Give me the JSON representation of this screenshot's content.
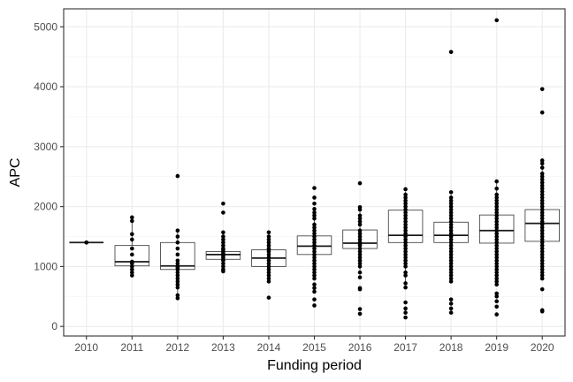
{
  "chart_data": {
    "type": "box",
    "xlabel": "Funding period",
    "ylabel": "APC",
    "categories": [
      "2010",
      "2011",
      "2012",
      "2013",
      "2014",
      "2015",
      "2016",
      "2017",
      "2018",
      "2019",
      "2020"
    ],
    "ylim": [
      -160,
      5300
    ],
    "yticks": [
      0,
      1000,
      2000,
      3000,
      4000,
      5000
    ],
    "grid": true,
    "boxes": [
      {
        "category": "2010",
        "q1": 1400,
        "median": 1400,
        "q3": 1400,
        "whisker_low": 1400,
        "whisker_high": 1400
      },
      {
        "category": "2011",
        "q1": 1010,
        "median": 1080,
        "q3": 1350,
        "whisker_low": 880,
        "whisker_high": 1780
      },
      {
        "category": "2012",
        "q1": 950,
        "median": 1010,
        "q3": 1400,
        "whisker_low": 500,
        "whisker_high": 1600
      },
      {
        "category": "2013",
        "q1": 1120,
        "median": 1200,
        "q3": 1250,
        "whisker_low": 940,
        "whisker_high": 1570
      },
      {
        "category": "2014",
        "q1": 1000,
        "median": 1140,
        "q3": 1280,
        "whisker_low": 750,
        "whisker_high": 1570
      },
      {
        "category": "2015",
        "q1": 1200,
        "median": 1340,
        "q3": 1510,
        "whisker_low": 800,
        "whisker_high": 1960
      },
      {
        "category": "2016",
        "q1": 1300,
        "median": 1390,
        "q3": 1610,
        "whisker_low": 900,
        "whisker_high": 1980
      },
      {
        "category": "2017",
        "q1": 1400,
        "median": 1520,
        "q3": 1940,
        "whisker_low": 720,
        "whisker_high": 2250
      },
      {
        "category": "2018",
        "q1": 1400,
        "median": 1520,
        "q3": 1740,
        "whisker_low": 950,
        "whisker_high": 2200
      },
      {
        "category": "2019",
        "q1": 1390,
        "median": 1600,
        "q3": 1860,
        "whisker_low": 700,
        "whisker_high": 2420
      },
      {
        "category": "2020",
        "q1": 1420,
        "median": 1720,
        "q3": 1950,
        "whisker_low": 950,
        "whisker_high": 2720
      }
    ],
    "points": [
      {
        "category": "2010",
        "values": [
          1400,
          1400
        ]
      },
      {
        "category": "2011",
        "values": [
          1820,
          1760,
          1540,
          1450,
          1300,
          1200,
          1080,
          1050,
          1000,
          950,
          900,
          850
        ]
      },
      {
        "category": "2012",
        "values": [
          2510,
          1600,
          1500,
          1400,
          1300,
          1200,
          1100,
          1050,
          1000,
          980,
          950,
          900,
          850,
          800,
          750,
          700,
          650,
          520,
          470
        ]
      },
      {
        "category": "2013",
        "values": [
          2050,
          1900,
          1570,
          1500,
          1450,
          1400,
          1350,
          1300,
          1280,
          1250,
          1220,
          1200,
          1180,
          1150,
          1120,
          1100,
          1050,
          1000,
          950,
          920
        ]
      },
      {
        "category": "2014",
        "values": [
          1570,
          1500,
          1450,
          1400,
          1350,
          1300,
          1280,
          1250,
          1200,
          1150,
          1100,
          1050,
          1000,
          950,
          900,
          850,
          800,
          750,
          480
        ]
      },
      {
        "category": "2015",
        "values": [
          2310,
          2150,
          2050,
          1960,
          1900,
          1850,
          1800,
          1700,
          1650,
          1600,
          1550,
          1500,
          1450,
          1400,
          1350,
          1300,
          1250,
          1200,
          1150,
          1100,
          1050,
          1000,
          950,
          900,
          850,
          800,
          700,
          640,
          580,
          450,
          350
        ]
      },
      {
        "category": "2016",
        "values": [
          2390,
          1990,
          1950,
          1850,
          1800,
          1750,
          1700,
          1600,
          1550,
          1500,
          1450,
          1400,
          1380,
          1350,
          1300,
          1250,
          1200,
          1150,
          1100,
          1050,
          1000,
          900,
          820,
          640,
          620,
          290,
          210
        ]
      },
      {
        "category": "2017",
        "values": [
          2290,
          2200,
          2150,
          2100,
          2050,
          2000,
          1950,
          1900,
          1850,
          1800,
          1750,
          1700,
          1650,
          1600,
          1550,
          1500,
          1450,
          1400,
          1350,
          1300,
          1250,
          1200,
          1150,
          1100,
          1050,
          1000,
          900,
          850,
          720,
          650,
          400,
          300,
          230,
          150
        ]
      },
      {
        "category": "2018",
        "values": [
          4580,
          2240,
          2150,
          2100,
          2050,
          2000,
          1950,
          1900,
          1850,
          1800,
          1750,
          1700,
          1650,
          1600,
          1550,
          1500,
          1450,
          1400,
          1350,
          1300,
          1250,
          1200,
          1150,
          1100,
          1050,
          1000,
          950,
          900,
          850,
          800,
          750,
          450,
          380,
          300,
          230
        ]
      },
      {
        "category": "2019",
        "values": [
          5110,
          2420,
          2300,
          2200,
          2150,
          2100,
          2050,
          2000,
          1950,
          1900,
          1850,
          1800,
          1750,
          1700,
          1650,
          1600,
          1550,
          1500,
          1450,
          1400,
          1350,
          1300,
          1250,
          1200,
          1150,
          1100,
          1050,
          1000,
          950,
          900,
          850,
          800,
          750,
          700,
          550,
          500,
          420,
          330,
          200
        ]
      },
      {
        "category": "2020",
        "values": [
          3960,
          3570,
          2770,
          2720,
          2650,
          2550,
          2500,
          2450,
          2400,
          2350,
          2300,
          2250,
          2200,
          2150,
          2100,
          2050,
          2000,
          1950,
          1900,
          1850,
          1800,
          1750,
          1700,
          1650,
          1600,
          1550,
          1500,
          1450,
          1400,
          1350,
          1300,
          1250,
          1200,
          1150,
          1100,
          1050,
          1000,
          950,
          900,
          850,
          800,
          620,
          270,
          250
        ]
      }
    ]
  }
}
